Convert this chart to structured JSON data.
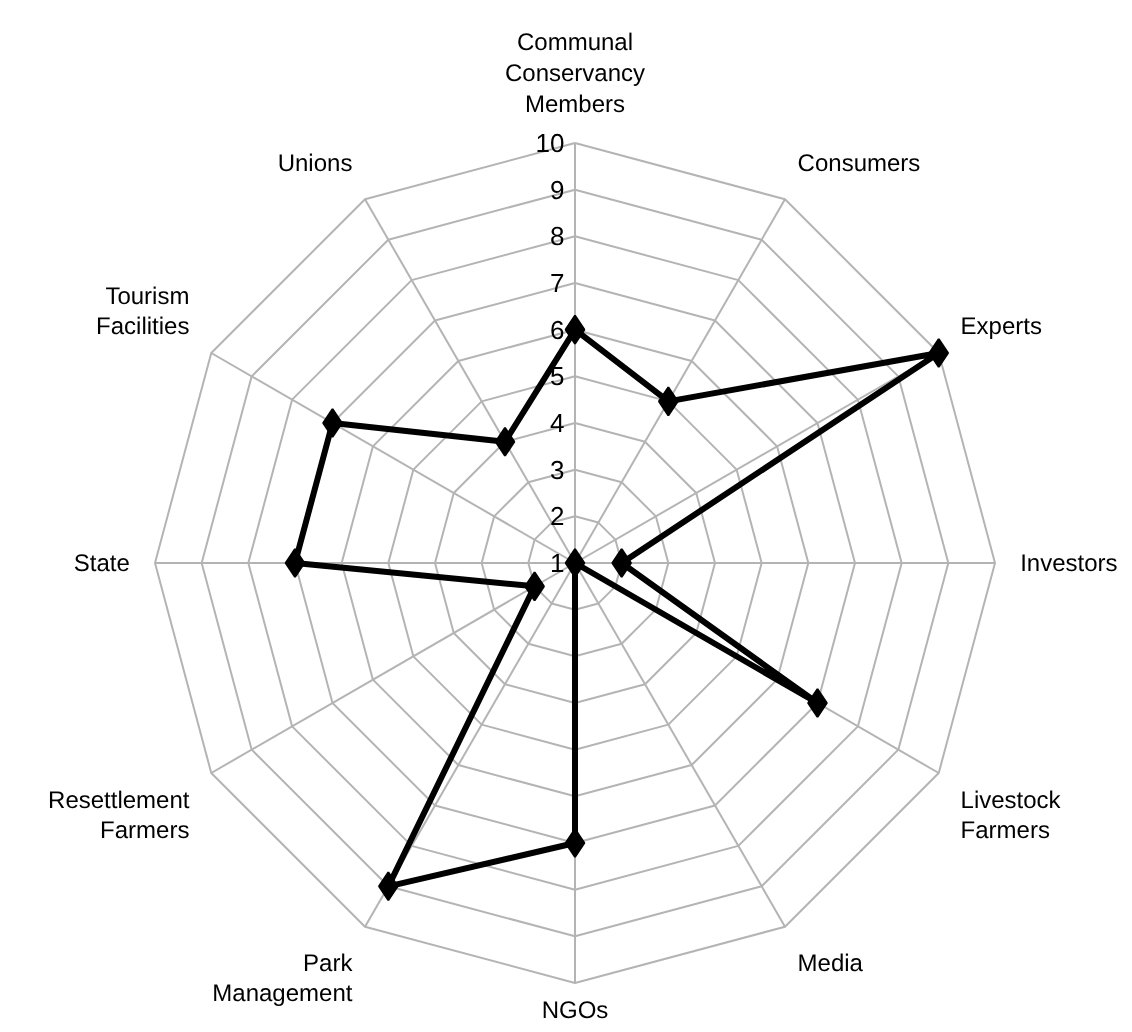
{
  "chart_data": {
    "type": "radar",
    "categories": [
      "Communal Conservancy Members",
      "Consumers",
      "Experts",
      "Investors",
      "Livestock Farmers",
      "Media",
      "NGOs",
      "Park Management",
      "Resettlement Farmers",
      "State",
      "Tourism Facilities",
      "Unions"
    ],
    "series": [
      {
        "color": "#000000",
        "values": [
          6,
          5,
          10,
          2,
          7,
          1,
          7,
          9,
          2,
          7,
          7,
          4
        ]
      }
    ],
    "ylim": [
      1,
      10
    ],
    "yticks": [
      1,
      2,
      3,
      4,
      5,
      6,
      7,
      8,
      9,
      10
    ],
    "grid": true,
    "marker": "diamond",
    "line_style": "solid"
  }
}
